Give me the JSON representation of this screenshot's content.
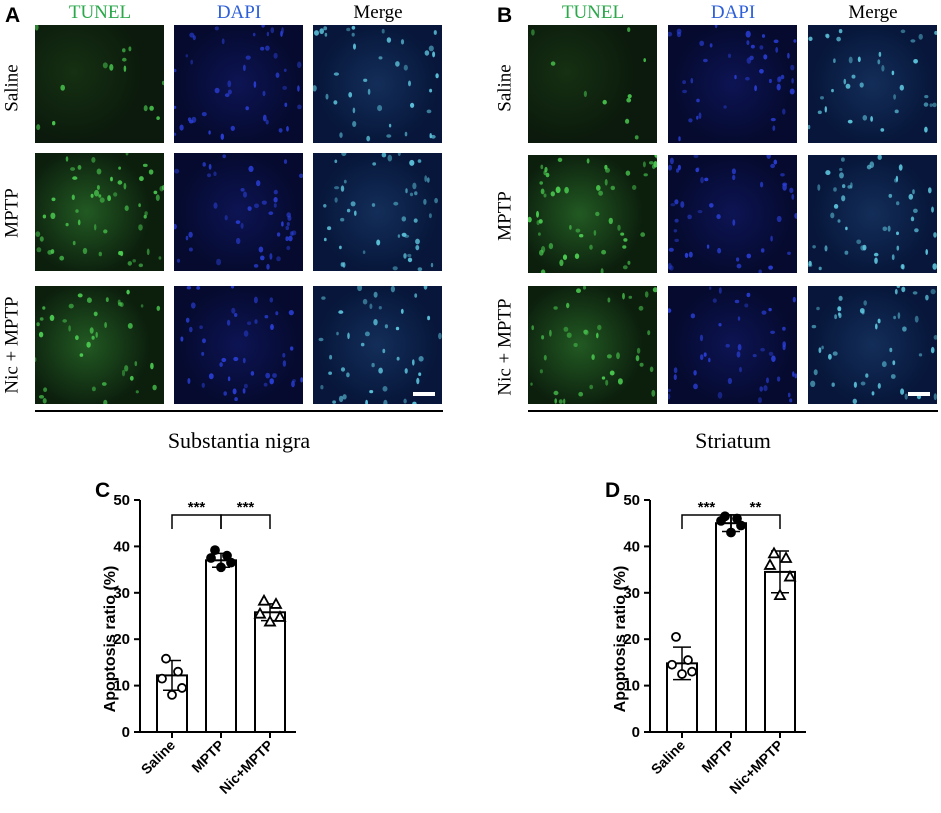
{
  "panel_A": {
    "letter": "A",
    "columns": [
      "TUNEL",
      "DAPI",
      "Merge"
    ],
    "rows": [
      "Saline",
      "MPTP",
      "Nic + MPTP"
    ],
    "region": "Substantia nigra"
  },
  "panel_B": {
    "letter": "B",
    "columns": [
      "TUNEL",
      "DAPI",
      "Merge"
    ],
    "rows": [
      "Saline",
      "MPTP",
      "Nic + MPTP"
    ],
    "region": "Striatum"
  },
  "colors": {
    "tunel_label": "#2aa84a",
    "dapi_label": "#2d5fd8",
    "merge_label": "#000000",
    "tunel_nuclei": "#4ccf52",
    "dapi_nuclei": "#2a3fd8",
    "merge_nuclei": "#5fc8e0"
  },
  "chart_data": [
    {
      "panel_letter": "C",
      "type": "bar",
      "categories": [
        "Saline",
        "MPTP",
        "Nic+MPTP"
      ],
      "values": [
        12.2,
        37.0,
        25.8
      ],
      "error": [
        3.2,
        1.5,
        1.8
      ],
      "points": [
        [
          15.8,
          13.0,
          11.5,
          9.5,
          8.0
        ],
        [
          39.2,
          38.0,
          37.5,
          36.5,
          35.5
        ],
        [
          28.3,
          27.6,
          25.5,
          24.8,
          23.8
        ]
      ],
      "markers": [
        "open-circle",
        "filled-circle",
        "open-triangle"
      ],
      "ylabel": "Apoptosis ratio (%)",
      "ylim": [
        0,
        50
      ],
      "yticks": [
        "0",
        "10",
        "20",
        "30",
        "40",
        "50"
      ],
      "significance": [
        {
          "from": 0,
          "to": 1,
          "label": "***"
        },
        {
          "from": 1,
          "to": 2,
          "label": "***"
        }
      ]
    },
    {
      "panel_letter": "D",
      "type": "bar",
      "categories": [
        "Saline",
        "MPTP",
        "Nic+MPTP"
      ],
      "values": [
        14.8,
        45.0,
        34.5
      ],
      "error": [
        3.5,
        1.8,
        4.5
      ],
      "points": [
        [
          20.5,
          15.5,
          14.5,
          13.0,
          12.5
        ],
        [
          46.5,
          46.0,
          45.5,
          44.5,
          43.0
        ],
        [
          38.5,
          37.5,
          36.0,
          33.5,
          29.5
        ]
      ],
      "markers": [
        "open-circle",
        "filled-circle",
        "open-triangle"
      ],
      "ylabel": "Apoptosis ratio (%)",
      "ylim": [
        0,
        50
      ],
      "yticks": [
        "0",
        "10",
        "20",
        "30",
        "40",
        "50"
      ],
      "significance": [
        {
          "from": 0,
          "to": 1,
          "label": "***"
        },
        {
          "from": 1,
          "to": 2,
          "label": "**"
        }
      ]
    }
  ]
}
